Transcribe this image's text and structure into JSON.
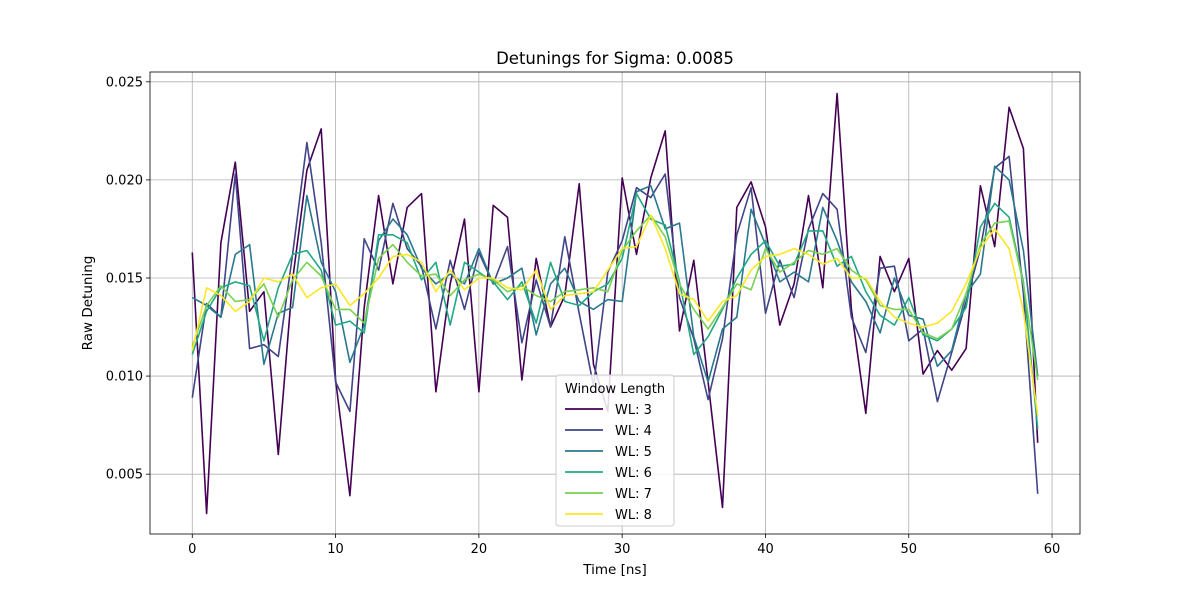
{
  "chart_data": {
    "type": "line",
    "title": "Detunings for Sigma: 0.0085",
    "xlabel": "Time [ns]",
    "ylabel": "Raw Detuning",
    "xlim": [
      -2.95,
      61.95
    ],
    "ylim": [
      0.00195,
      0.0255
    ],
    "xticks": [
      0,
      10,
      20,
      30,
      40,
      50,
      60
    ],
    "xtick_labels": [
      "0",
      "10",
      "20",
      "30",
      "40",
      "50",
      "60"
    ],
    "yticks": [
      0.005,
      0.01,
      0.015,
      0.02,
      0.025
    ],
    "ytick_labels": [
      "0.005",
      "0.010",
      "0.015",
      "0.020",
      "0.025"
    ],
    "grid": true,
    "legend": {
      "title": "Window Length",
      "placement": "lower center"
    },
    "x": [
      0,
      1,
      2,
      3,
      4,
      5,
      6,
      7,
      8,
      9,
      10,
      11,
      12,
      13,
      14,
      15,
      16,
      17,
      18,
      19,
      20,
      21,
      22,
      23,
      24,
      25,
      26,
      27,
      28,
      29,
      30,
      31,
      32,
      33,
      34,
      35,
      36,
      37,
      38,
      39,
      40,
      41,
      42,
      43,
      44,
      45,
      46,
      47,
      48,
      49,
      50,
      51,
      52,
      53,
      54,
      55,
      56,
      57,
      58,
      59
    ],
    "series": [
      {
        "name": "WL: 3",
        "color": "#440154",
        "values": [
          0.0163,
          0.003,
          0.0168,
          0.0209,
          0.0133,
          0.0143,
          0.006,
          0.0149,
          0.0205,
          0.0226,
          0.0098,
          0.0039,
          0.0135,
          0.0192,
          0.0147,
          0.0186,
          0.0193,
          0.0092,
          0.0147,
          0.018,
          0.0092,
          0.0187,
          0.0181,
          0.0098,
          0.016,
          0.0125,
          0.0141,
          0.0198,
          0.0106,
          0.0082,
          0.0201,
          0.0162,
          0.0201,
          0.0225,
          0.0123,
          0.0159,
          0.0097,
          0.0033,
          0.0186,
          0.0199,
          0.0176,
          0.0126,
          0.0147,
          0.0192,
          0.0145,
          0.0244,
          0.0134,
          0.0081,
          0.0161,
          0.0143,
          0.016,
          0.0101,
          0.0113,
          0.0103,
          0.0114,
          0.0197,
          0.0166,
          0.0237,
          0.0216,
          0.0066
        ]
      },
      {
        "name": "WL: 4",
        "color": "#414487",
        "values": [
          0.0089,
          0.0137,
          0.013,
          0.0203,
          0.0114,
          0.0116,
          0.011,
          0.0162,
          0.0219,
          0.0168,
          0.0097,
          0.0082,
          0.017,
          0.0154,
          0.0188,
          0.0165,
          0.0156,
          0.0124,
          0.0159,
          0.0134,
          0.0163,
          0.0147,
          0.0166,
          0.0117,
          0.0149,
          0.0125,
          0.0171,
          0.0132,
          0.0095,
          0.0153,
          0.0169,
          0.0196,
          0.0191,
          0.0203,
          0.014,
          0.0119,
          0.0088,
          0.0119,
          0.0172,
          0.0196,
          0.0132,
          0.0159,
          0.014,
          0.0175,
          0.0193,
          0.0185,
          0.013,
          0.0112,
          0.0155,
          0.0156,
          0.0118,
          0.0124,
          0.0087,
          0.0112,
          0.0138,
          0.0165,
          0.0206,
          0.0212,
          0.0142,
          0.004
        ]
      },
      {
        "name": "WL: 5",
        "color": "#2a788e",
        "values": [
          0.014,
          0.0136,
          0.013,
          0.0162,
          0.0167,
          0.0106,
          0.0132,
          0.0135,
          0.0192,
          0.0158,
          0.0143,
          0.0107,
          0.0126,
          0.0169,
          0.018,
          0.0172,
          0.0155,
          0.0147,
          0.0152,
          0.0147,
          0.0165,
          0.0147,
          0.015,
          0.0155,
          0.0121,
          0.0147,
          0.0155,
          0.0138,
          0.0134,
          0.0139,
          0.0138,
          0.0194,
          0.0197,
          0.0175,
          0.0178,
          0.012,
          0.0097,
          0.0124,
          0.013,
          0.0185,
          0.0167,
          0.0148,
          0.0153,
          0.0148,
          0.0186,
          0.0169,
          0.0148,
          0.0138,
          0.0122,
          0.015,
          0.0131,
          0.0129,
          0.0105,
          0.0113,
          0.0142,
          0.0152,
          0.0207,
          0.02,
          0.0164,
          0.01
        ]
      },
      {
        "name": "WL: 6",
        "color": "#22a884",
        "values": [
          0.0111,
          0.0133,
          0.0145,
          0.0148,
          0.0146,
          0.0118,
          0.0145,
          0.0162,
          0.0164,
          0.0154,
          0.0126,
          0.0128,
          0.0122,
          0.0172,
          0.0172,
          0.0168,
          0.0149,
          0.0158,
          0.0126,
          0.0158,
          0.0153,
          0.0148,
          0.0139,
          0.0148,
          0.0127,
          0.0158,
          0.0138,
          0.0136,
          0.0143,
          0.0147,
          0.016,
          0.0193,
          0.018,
          0.0177,
          0.0148,
          0.0111,
          0.012,
          0.0134,
          0.015,
          0.0162,
          0.0169,
          0.0156,
          0.0157,
          0.0174,
          0.0174,
          0.0156,
          0.0161,
          0.0143,
          0.0131,
          0.0126,
          0.014,
          0.0121,
          0.0118,
          0.0124,
          0.0135,
          0.0176,
          0.0188,
          0.0181,
          0.0148,
          0.0073
        ]
      },
      {
        "name": "WL: 7",
        "color": "#7ad151",
        "values": [
          0.0115,
          0.0136,
          0.0146,
          0.0138,
          0.0139,
          0.0147,
          0.013,
          0.0149,
          0.0158,
          0.0151,
          0.0134,
          0.0134,
          0.0127,
          0.016,
          0.0167,
          0.0158,
          0.0151,
          0.0152,
          0.0141,
          0.0149,
          0.0152,
          0.0149,
          0.0143,
          0.0146,
          0.0141,
          0.0138,
          0.0143,
          0.0144,
          0.0145,
          0.0143,
          0.0164,
          0.0174,
          0.0182,
          0.0171,
          0.0147,
          0.0134,
          0.0124,
          0.0135,
          0.0147,
          0.0144,
          0.0165,
          0.0153,
          0.0158,
          0.0164,
          0.0162,
          0.0165,
          0.0154,
          0.0149,
          0.0136,
          0.0134,
          0.0134,
          0.0122,
          0.0119,
          0.0124,
          0.0142,
          0.0167,
          0.0178,
          0.0179,
          0.0147,
          0.0098
        ]
      },
      {
        "name": "WL: 8",
        "color": "#fde725",
        "values": [
          0.0113,
          0.0145,
          0.0141,
          0.0133,
          0.0138,
          0.015,
          0.0148,
          0.0152,
          0.014,
          0.0145,
          0.0147,
          0.0136,
          0.0142,
          0.015,
          0.0161,
          0.0162,
          0.0158,
          0.0143,
          0.0154,
          0.0144,
          0.015,
          0.015,
          0.0145,
          0.0144,
          0.0154,
          0.0134,
          0.0141,
          0.0142,
          0.0143,
          0.0154,
          0.0165,
          0.0166,
          0.0182,
          0.0165,
          0.0142,
          0.0139,
          0.0128,
          0.0138,
          0.0141,
          0.0154,
          0.0161,
          0.0162,
          0.0165,
          0.0162,
          0.0157,
          0.016,
          0.015,
          0.015,
          0.0138,
          0.013,
          0.0127,
          0.0125,
          0.0127,
          0.0133,
          0.0147,
          0.0165,
          0.0175,
          0.0165,
          0.0133,
          0.008
        ]
      }
    ]
  }
}
